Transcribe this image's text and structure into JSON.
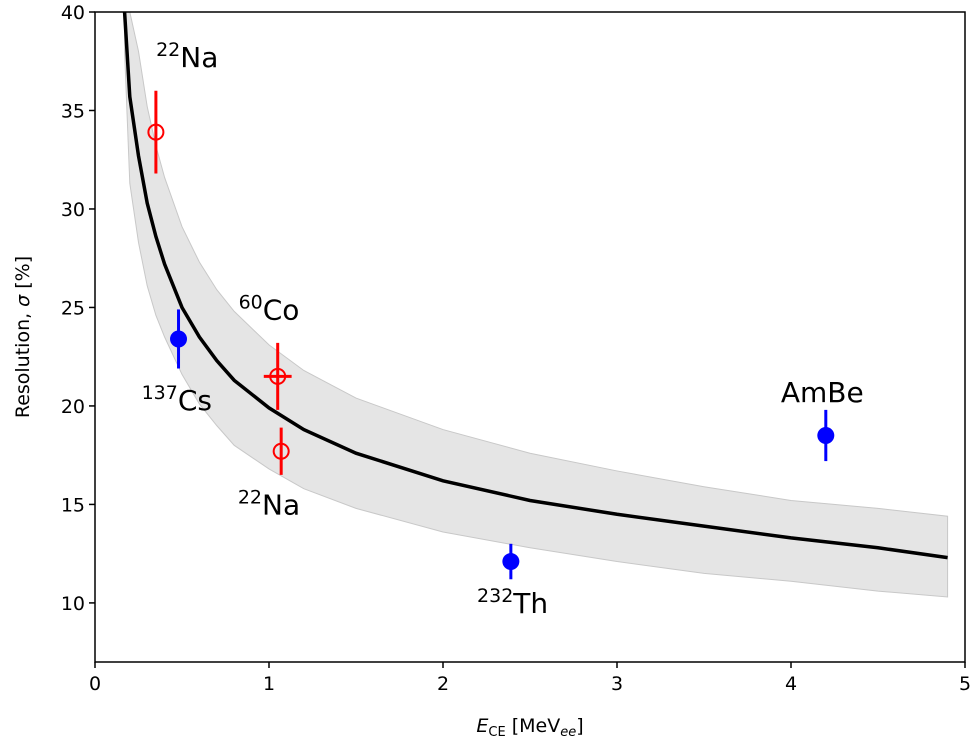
{
  "chart_data": {
    "type": "scatter",
    "title": "",
    "xlabel": {
      "main": "E",
      "sub": "CE",
      "after": " [MeV",
      "unit_sub": "ee",
      "close": "]"
    },
    "ylabel": {
      "before": "Resolution, ",
      "symbol": "σ",
      "after": " [%]"
    },
    "xlim": [
      0,
      5
    ],
    "ylim": [
      7,
      40
    ],
    "xticks": [
      0,
      1,
      2,
      3,
      4,
      5
    ],
    "yticks": [
      10,
      15,
      20,
      25,
      30,
      35,
      40
    ],
    "grid": false,
    "fit_curve": {
      "color": "#000000",
      "x": [
        0.17,
        0.2,
        0.25,
        0.3,
        0.35,
        0.4,
        0.5,
        0.6,
        0.7,
        0.8,
        1.0,
        1.2,
        1.5,
        2.0,
        2.5,
        3.0,
        3.5,
        4.0,
        4.5,
        4.9
      ],
      "y": [
        40.0,
        35.7,
        32.7,
        30.3,
        28.6,
        27.2,
        25.0,
        23.5,
        22.3,
        21.3,
        19.9,
        18.8,
        17.6,
        16.2,
        15.2,
        14.5,
        13.9,
        13.3,
        12.8,
        12.3
      ]
    },
    "uncertainty_band": {
      "color": "#e5e5e5",
      "x": [
        0.17,
        0.2,
        0.25,
        0.3,
        0.35,
        0.4,
        0.5,
        0.6,
        0.7,
        0.8,
        1.0,
        1.2,
        1.5,
        2.0,
        2.5,
        3.0,
        3.5,
        4.0,
        4.5,
        4.9
      ],
      "upper": [
        40.0,
        40.0,
        38.0,
        35.2,
        33.2,
        31.6,
        29.1,
        27.3,
        25.9,
        24.8,
        23.1,
        21.8,
        20.4,
        18.8,
        17.6,
        16.7,
        15.9,
        15.2,
        14.8,
        14.4
      ],
      "lower": [
        38.0,
        31.3,
        28.3,
        26.1,
        24.6,
        23.5,
        21.6,
        20.1,
        19.0,
        18.0,
        16.8,
        15.8,
        14.8,
        13.6,
        12.8,
        12.1,
        11.5,
        11.1,
        10.6,
        10.3
      ]
    },
    "series": [
      {
        "color": "#ff0000",
        "marker": "open-circle",
        "points": [
          {
            "x": 0.35,
            "y": 33.9,
            "yerr": 2.1,
            "xerr": 0
          },
          {
            "x": 1.05,
            "y": 21.5,
            "yerr": 1.7,
            "xerr": 0.08
          },
          {
            "x": 1.07,
            "y": 17.7,
            "yerr": 1.2,
            "xerr": 0
          }
        ]
      },
      {
        "color": "#0000ff",
        "marker": "filled-circle",
        "points": [
          {
            "x": 0.48,
            "y": 23.4,
            "yerr": 1.5,
            "xerr": 0
          },
          {
            "x": 2.39,
            "y": 12.1,
            "yerr": 0.9,
            "xerr": 0
          },
          {
            "x": 4.2,
            "y": 18.5,
            "yerr": 1.3,
            "xerr": 0
          }
        ]
      }
    ],
    "annotations": [
      {
        "sup": "22",
        "text": "Na",
        "x": 0.53,
        "y": 37.2
      },
      {
        "sup": "60",
        "text": "Co",
        "x": 1.0,
        "y": 24.4
      },
      {
        "sup": "137",
        "text": "Cs",
        "x": 0.47,
        "y": 19.8
      },
      {
        "sup": "22",
        "text": "Na",
        "x": 1.0,
        "y": 14.5
      },
      {
        "sup": "232",
        "text": "Th",
        "x": 2.4,
        "y": 9.5
      },
      {
        "sup": "",
        "text": "AmBe",
        "x": 4.18,
        "y": 20.2
      }
    ]
  }
}
